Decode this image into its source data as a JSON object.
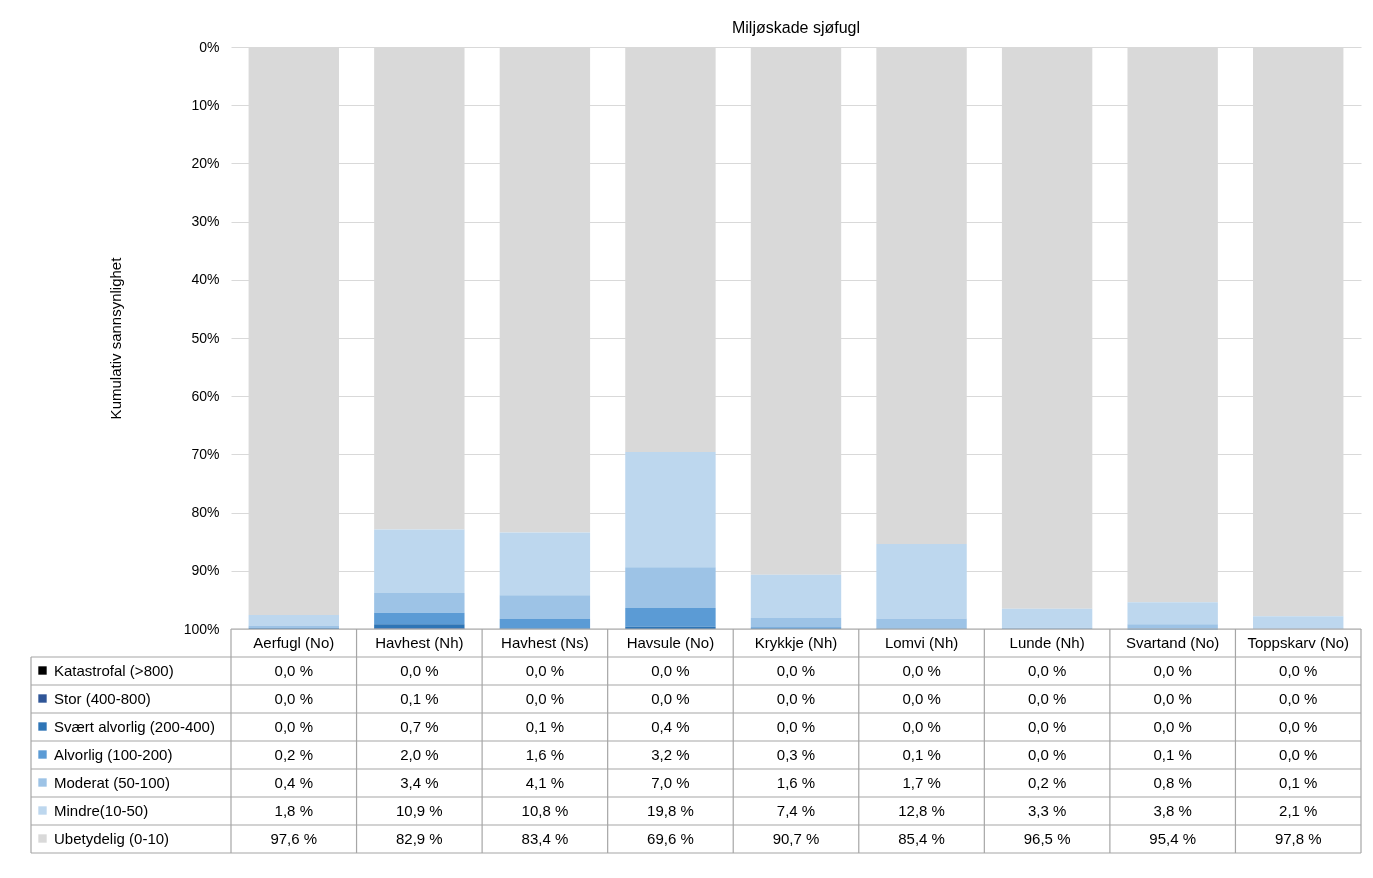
{
  "chart_data": {
    "type": "bar",
    "title": "Miljøskade sjøfugl",
    "ylabel": "Kumulativ sannsynlighet",
    "stacked": true,
    "categories": [
      "Aerfugl (No)",
      "Havhest (Nh)",
      "Havhest (Ns)",
      "Havsule (No)",
      "Krykkje (Nh)",
      "Lomvi (Nh)",
      "Lunde (Nh)",
      "Svartand (No)",
      "Toppskarv (No)"
    ],
    "series": [
      {
        "name": "Ubetydelig (0-10)",
        "color": "#d9d9d9",
        "values": [
          97.6,
          82.9,
          83.4,
          69.6,
          90.7,
          85.4,
          96.5,
          95.4,
          97.8
        ],
        "value_labels": [
          "97,6 %",
          "82,9 %",
          "83,4 %",
          "69,6 %",
          "90,7 %",
          "85,4 %",
          "96,5 %",
          "95,4 %",
          "97,8 %"
        ]
      },
      {
        "name": "Mindre(10-50)",
        "color": "#bdd7ee",
        "values": [
          1.8,
          10.9,
          10.8,
          19.8,
          7.4,
          12.8,
          3.3,
          3.8,
          2.1
        ],
        "value_labels": [
          "1,8 %",
          "10,9 %",
          "10,8 %",
          "19,8 %",
          "7,4 %",
          "12,8 %",
          "3,3 %",
          "3,8 %",
          "2,1 %"
        ]
      },
      {
        "name": "Moderat (50-100)",
        "color": "#9dc3e6",
        "values": [
          0.4,
          3.4,
          4.1,
          7.0,
          1.6,
          1.7,
          0.2,
          0.8,
          0.1
        ],
        "value_labels": [
          "0,4 %",
          "3,4 %",
          "4,1 %",
          "7,0 %",
          "1,6 %",
          "1,7 %",
          "0,2 %",
          "0,8 %",
          "0,1 %"
        ]
      },
      {
        "name": "Alvorlig (100-200)",
        "color": "#5b9bd5",
        "values": [
          0.2,
          2.0,
          1.6,
          3.2,
          0.3,
          0.1,
          0.0,
          0.1,
          0.0
        ],
        "value_labels": [
          "0,2 %",
          "2,0 %",
          "1,6 %",
          "3,2 %",
          "0,3 %",
          "0,1 %",
          "0,0 %",
          "0,1 %",
          "0,0 %"
        ]
      },
      {
        "name": "Svært alvorlig (200-400)",
        "color": "#2e75b6",
        "values": [
          0.0,
          0.7,
          0.1,
          0.4,
          0.0,
          0.0,
          0.0,
          0.0,
          0.0
        ],
        "value_labels": [
          "0,0 %",
          "0,7 %",
          "0,1 %",
          "0,4 %",
          "0,0 %",
          "0,0 %",
          "0,0 %",
          "0,0 %",
          "0,0 %"
        ]
      },
      {
        "name": "Stor (400-800)",
        "color": "#2f5597",
        "values": [
          0.0,
          0.1,
          0.0,
          0.0,
          0.0,
          0.0,
          0.0,
          0.0,
          0.0
        ],
        "value_labels": [
          "0,0 %",
          "0,1 %",
          "0,0 %",
          "0,0 %",
          "0,0 %",
          "0,0 %",
          "0,0 %",
          "0,0 %",
          "0,0 %"
        ]
      },
      {
        "name": "Katastrofal (>800)",
        "color": "#000000",
        "values": [
          0.0,
          0.0,
          0.0,
          0.0,
          0.0,
          0.0,
          0.0,
          0.0,
          0.0
        ],
        "value_labels": [
          "0,0 %",
          "0,0 %",
          "0,0 %",
          "0,0 %",
          "0,0 %",
          "0,0 %",
          "0,0 %",
          "0,0 %",
          "0,0 %"
        ]
      }
    ],
    "ylim": [
      100,
      0
    ],
    "yticks": [
      {
        "value": 0,
        "label": "0%"
      },
      {
        "value": 10,
        "label": "10%"
      },
      {
        "value": 20,
        "label": "20%"
      },
      {
        "value": 30,
        "label": "30%"
      },
      {
        "value": 40,
        "label": "40%"
      },
      {
        "value": 50,
        "label": "50%"
      },
      {
        "value": 60,
        "label": "60%"
      },
      {
        "value": 70,
        "label": "70%"
      },
      {
        "value": 80,
        "label": "80%"
      },
      {
        "value": 90,
        "label": "90%"
      },
      {
        "value": 100,
        "label": "100%"
      }
    ],
    "grid": "y",
    "legend": "bottom left"
  }
}
